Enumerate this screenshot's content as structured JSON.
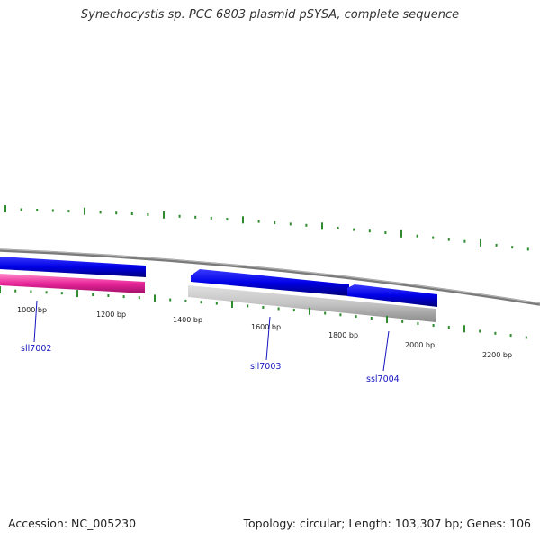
{
  "title": "Synechocystis sp. PCC 6803 plasmid pSYSA, complete sequence",
  "footer": {
    "accession": "Accession: NC_005230",
    "summary": "Topology: circular; Length: 103,307 bp; Genes: 106"
  },
  "ruler": {
    "labels": [
      "1000 bp",
      "1200 bp",
      "1400 bp",
      "1600 bp",
      "1800 bp",
      "2000 bp",
      "2200 bp"
    ]
  },
  "genes": [
    {
      "name": "sll7002",
      "strand": "-"
    },
    {
      "name": "sll7003",
      "strand": "-"
    },
    {
      "name": "ssl7004",
      "strand": "-"
    }
  ],
  "colors": {
    "tick": "#2e8b2e",
    "backbone": "#707070",
    "forward_gene": "#0000e0",
    "pink_feature": "#e8259a",
    "gray_feature": "#c0c0c0",
    "gene_label": "#1515c0"
  }
}
